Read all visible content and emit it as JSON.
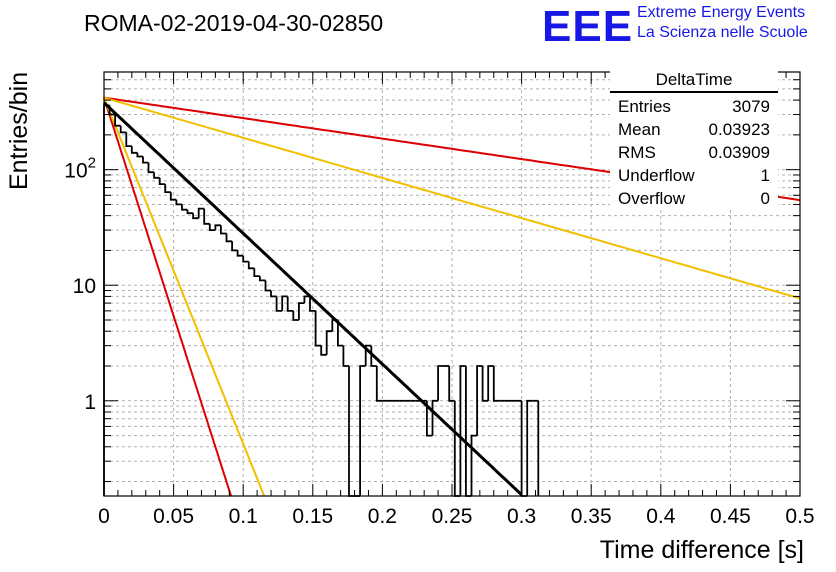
{
  "header": {
    "run_title": "ROMA-02-2019-04-30-02850",
    "logo_text": "EEE",
    "logo_line1": "Extreme Energy Events",
    "logo_line2": "La Scienza nelle Scuole"
  },
  "stats_box": {
    "title": "DeltaTime",
    "rows": [
      {
        "label": "Entries",
        "value": "3079"
      },
      {
        "label": "Mean",
        "value": "0.03923"
      },
      {
        "label": "RMS",
        "value": "0.03909"
      },
      {
        "label": "Underflow",
        "value": "1"
      },
      {
        "label": "Overflow",
        "value": "0"
      }
    ]
  },
  "chart_data": {
    "type": "line",
    "title": "ROMA-02-2019-04-30-02850",
    "xlabel": "Time difference [s]",
    "ylabel": "Entries/bin",
    "xlim": [
      0,
      0.5
    ],
    "ylim": [
      0.15,
      700
    ],
    "yscale": "log",
    "grid": true,
    "x_ticks": [
      "0",
      "0.05",
      "0.1",
      "0.15",
      "0.2",
      "0.25",
      "0.3",
      "0.35",
      "0.4",
      "0.45",
      "0.5"
    ],
    "y_ticks": [
      {
        "value": 1,
        "label": "1"
      },
      {
        "value": 10,
        "label": "10"
      },
      {
        "value": 100,
        "label": "10^2"
      }
    ],
    "histogram": {
      "name": "DeltaTime",
      "bin_width": 0.004,
      "x_start": 0,
      "color": "#000000",
      "counts": [
        360,
        300,
        240,
        210,
        160,
        140,
        130,
        115,
        95,
        85,
        75,
        64,
        55,
        50,
        45,
        42,
        38,
        46,
        34,
        30,
        33,
        28,
        24,
        20,
        18,
        16,
        14,
        12,
        11,
        9,
        8,
        6,
        8,
        6,
        5,
        7,
        8,
        6,
        3,
        2.5,
        4,
        5,
        3,
        2,
        0,
        0,
        2,
        3,
        2,
        1,
        1,
        1,
        1,
        1,
        1,
        1,
        1,
        1,
        0.5,
        1,
        2,
        2,
        1,
        0,
        2,
        0,
        0.5,
        2,
        1,
        2,
        1,
        1,
        1,
        1,
        1,
        0,
        1,
        1
      ],
      "fit": {
        "amplitude": 380,
        "tau": 0.0384,
        "x_end": 0.3,
        "color": "#000000"
      }
    },
    "series": [
      {
        "color": "#dd0000",
        "amplitude": 420,
        "tau": 0.0115,
        "x_end": 0.5
      },
      {
        "color": "#f0c000",
        "amplitude": 420,
        "tau": 0.0145,
        "x_end": 0.5
      },
      {
        "color": "#dd0000",
        "amplitude": 420,
        "tau": 0.245,
        "x_end": 0.5
      },
      {
        "color": "#f0c000",
        "amplitude": 420,
        "tau": 0.125,
        "x_end": 0.5
      }
    ]
  }
}
